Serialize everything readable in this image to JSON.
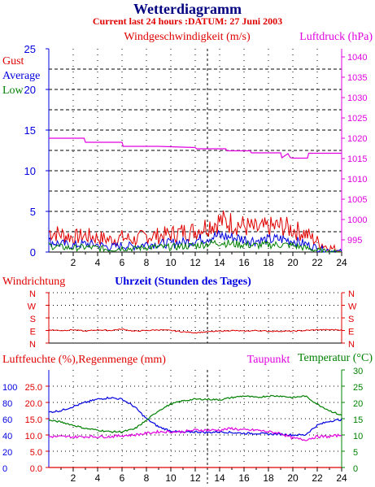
{
  "header": {
    "title": "Wetterdiagramm",
    "subtitle": "Current last 24 hours :DATUM: 27 Juni 2003"
  },
  "colors": {
    "title": "#000080",
    "subtitle": "#e00000",
    "red": "#e00000",
    "blue": "#0000e0",
    "green": "#008000",
    "magenta": "#e000e0",
    "black": "#000000"
  },
  "chart_data": [
    {
      "type": "line",
      "name": "wind-pressure",
      "title": "Windgeschwindigkeit (m/s)",
      "title_right": "Luftdruck (hPa)",
      "legend": [
        "Gust",
        "Average",
        "Low"
      ],
      "xlabel": "",
      "xlim": [
        0,
        24
      ],
      "x_ticks": [
        2,
        4,
        6,
        8,
        10,
        12,
        14,
        16,
        18,
        20,
        22,
        24
      ],
      "ylim": [
        0,
        25
      ],
      "y_ticks": [
        0,
        5,
        10,
        15,
        20,
        25
      ],
      "y2lim": [
        992,
        1042
      ],
      "y2_ticks": [
        995,
        1000,
        1005,
        1010,
        1015,
        1020,
        1025,
        1030,
        1035,
        1040
      ],
      "series": [
        {
          "name": "Gust",
          "color": "#e00000",
          "x": [
            0,
            1,
            2,
            3,
            4,
            5,
            6,
            7,
            8,
            9,
            10,
            11,
            12,
            13,
            14,
            15,
            16,
            17,
            18,
            19,
            20,
            21,
            22,
            23,
            24
          ],
          "values": [
            2.5,
            2.2,
            1.8,
            2.0,
            1.8,
            1.5,
            1.8,
            1.5,
            2.0,
            2.0,
            2.2,
            2.5,
            2.6,
            3.3,
            3.8,
            3.6,
            3.2,
            2.8,
            3.0,
            3.2,
            2.8,
            2.3,
            1.3,
            0.5,
            0.2
          ]
        },
        {
          "name": "Average",
          "color": "#0000e0",
          "x": [
            0,
            1,
            2,
            3,
            4,
            5,
            6,
            7,
            8,
            9,
            10,
            11,
            12,
            13,
            14,
            15,
            16,
            17,
            18,
            19,
            20,
            21,
            22,
            23,
            24
          ],
          "values": [
            1.3,
            1.0,
            0.8,
            1.0,
            0.9,
            0.6,
            0.8,
            0.7,
            1.0,
            1.0,
            1.1,
            1.2,
            1.4,
            1.8,
            2.0,
            1.8,
            1.6,
            1.4,
            1.5,
            1.6,
            1.4,
            1.0,
            0.5,
            0.2,
            0.0
          ]
        },
        {
          "name": "Low",
          "color": "#008000",
          "x": [
            0,
            1,
            2,
            3,
            4,
            5,
            6,
            7,
            8,
            9,
            10,
            11,
            12,
            13,
            14,
            15,
            16,
            17,
            18,
            19,
            20,
            21,
            22,
            23,
            24
          ],
          "values": [
            0.8,
            0.6,
            0.5,
            0.6,
            0.5,
            0.3,
            0.5,
            0.4,
            0.6,
            0.6,
            0.6,
            0.7,
            0.8,
            1.0,
            1.2,
            1.0,
            0.9,
            0.8,
            0.9,
            0.9,
            0.8,
            0.5,
            0.2,
            0.0,
            0.0
          ]
        },
        {
          "name": "Luftdruck",
          "axis": "right",
          "color": "#e000e0",
          "x": [
            0,
            2.9,
            3.0,
            6.0,
            6.1,
            9.0,
            12.0,
            12.1,
            14.5,
            14.6,
            16.5,
            16.6,
            19.0,
            19.1,
            19.6,
            19.8,
            20.0,
            21.2,
            21.3,
            24
          ],
          "values": [
            1020,
            1020,
            1019,
            1019,
            1018,
            1018,
            1017.7,
            1017.4,
            1017.4,
            1016.9,
            1016.9,
            1016.4,
            1016.4,
            1015.2,
            1016.2,
            1015.2,
            1015.1,
            1015.1,
            1016.3,
            1016.3
          ]
        }
      ]
    },
    {
      "type": "line",
      "name": "wind-direction",
      "title": "Windrichtung",
      "xlabel": "Uhrzeit (Stunden des Tages)",
      "xlim": [
        0,
        24
      ],
      "y_categories": [
        "N",
        "W",
        "S",
        "E",
        "N"
      ],
      "series": [
        {
          "name": "Windrichtung",
          "color": "#e00000",
          "x": [
            0,
            1,
            2,
            3,
            4,
            5,
            6,
            7,
            8,
            9,
            10,
            11,
            12,
            13,
            14,
            15,
            16,
            17,
            18,
            19,
            20,
            21,
            22,
            23,
            24
          ],
          "values": [
            "E",
            "E",
            "E",
            "E",
            "E",
            "E",
            "E",
            "E",
            "E",
            "E",
            "E",
            "E",
            "E",
            "E",
            "E",
            "E",
            "E",
            "E",
            "E",
            "E",
            "E",
            "E",
            "E",
            "E",
            "E"
          ],
          "offset_from_E_deg": [
            5,
            0,
            5,
            -5,
            5,
            0,
            10,
            -5,
            0,
            5,
            0,
            -10,
            -15,
            -10,
            -5,
            0,
            -5,
            0,
            -5,
            -5,
            -5,
            0,
            5,
            5,
            5
          ]
        }
      ]
    },
    {
      "type": "line",
      "name": "humidity-rain-temp",
      "title": "Luftfeuchte (%),Regenmenge (mm)",
      "legend": [
        "Taupunkt",
        "Temperatur (°C)"
      ],
      "xlim": [
        0,
        24
      ],
      "x_ticks": [
        2,
        4,
        6,
        8,
        10,
        12,
        14,
        16,
        18,
        20,
        22,
        24
      ],
      "humidity_ticks": [
        0,
        20,
        40,
        60,
        80,
        100
      ],
      "rain_ticks": [
        "0.0",
        "5.0",
        "10.0",
        "15.0",
        "20.0",
        "25.0"
      ],
      "ylim": [
        0,
        30
      ],
      "y_ticks": [
        0,
        5,
        10,
        15,
        20,
        25,
        30
      ],
      "series": [
        {
          "name": "Luftfeuchte",
          "color": "#0000e0",
          "unit": "%",
          "x": [
            0,
            1,
            2,
            3,
            4,
            5,
            6,
            7,
            8,
            9,
            10,
            11,
            12,
            13,
            14,
            15,
            16,
            17,
            18,
            19,
            20,
            21,
            22,
            23,
            24
          ],
          "values": [
            68,
            70,
            75,
            80,
            84,
            86,
            84,
            75,
            60,
            50,
            45,
            43,
            44,
            43,
            44,
            43,
            42,
            42,
            41,
            41,
            40,
            40,
            52,
            57,
            59
          ]
        },
        {
          "name": "Regenmenge",
          "color": "#e00000",
          "unit": "mm",
          "x": [
            0,
            24
          ],
          "values": [
            0,
            0
          ]
        },
        {
          "name": "Temperatur",
          "color": "#008000",
          "unit": "°C",
          "x": [
            0,
            1,
            2,
            3,
            4,
            5,
            6,
            7,
            8,
            9,
            10,
            11,
            12,
            13,
            14,
            15,
            16,
            17,
            18,
            19,
            20,
            21,
            22,
            23,
            24
          ],
          "values": [
            14.5,
            14,
            13,
            12,
            11.5,
            11,
            11,
            11.8,
            14.5,
            17.5,
            19.5,
            20.5,
            21,
            21,
            20.8,
            21.5,
            22,
            21.5,
            22,
            22,
            21.5,
            22,
            19.5,
            17.5,
            16
          ]
        },
        {
          "name": "Taupunkt",
          "color": "#e000e0",
          "unit": "°C",
          "x": [
            0,
            1,
            2,
            3,
            4,
            5,
            6,
            7,
            8,
            9,
            10,
            11,
            12,
            13,
            14,
            15,
            16,
            17,
            18,
            19,
            20,
            21,
            22,
            23,
            24
          ],
          "values": [
            9.5,
            9.5,
            9.4,
            9.5,
            9.5,
            9.5,
            9.8,
            10,
            10.5,
            11,
            11,
            11,
            11.5,
            11.5,
            11.5,
            12,
            11.5,
            11.5,
            11,
            10.5,
            9,
            8.5,
            9.5,
            9.5,
            10
          ]
        }
      ]
    }
  ]
}
